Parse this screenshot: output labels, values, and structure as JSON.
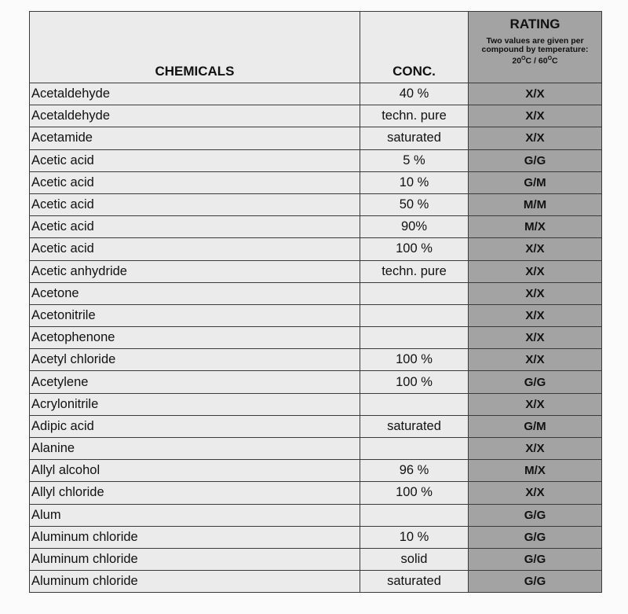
{
  "header": {
    "chemicals": "CHEMICALS",
    "conc": "CONC.",
    "rating": "RATING",
    "rating_note": "Two values are given per compound by temperature:",
    "temp1": "20",
    "temp2": "60",
    "deg_unit": "O",
    "unit_c1": "C / ",
    "unit_c2": "C"
  },
  "rows": [
    {
      "chemical": "Acetaldehyde",
      "conc": "40 %",
      "rating": "X/X"
    },
    {
      "chemical": "Acetaldehyde",
      "conc": "techn. pure",
      "rating": "X/X"
    },
    {
      "chemical": "Acetamide",
      "conc": "saturated",
      "rating": "X/X"
    },
    {
      "chemical": "Acetic acid",
      "conc": "5 %",
      "rating": "G/G"
    },
    {
      "chemical": "Acetic acid",
      "conc": "10 %",
      "rating": "G/M"
    },
    {
      "chemical": "Acetic acid",
      "conc": "50 %",
      "rating": "M/M"
    },
    {
      "chemical": "Acetic acid",
      "conc": "90%",
      "rating": "M/X"
    },
    {
      "chemical": "Acetic acid",
      "conc": "100 %",
      "rating": "X/X"
    },
    {
      "chemical": "Acetic anhydride",
      "conc": "techn. pure",
      "rating": "X/X"
    },
    {
      "chemical": "Acetone",
      "conc": "",
      "rating": "X/X"
    },
    {
      "chemical": "Acetonitrile",
      "conc": "",
      "rating": "X/X"
    },
    {
      "chemical": "Acetophenone",
      "conc": "",
      "rating": "X/X"
    },
    {
      "chemical": "Acetyl chloride",
      "conc": "100 %",
      "rating": "X/X"
    },
    {
      "chemical": "Acetylene",
      "conc": "100 %",
      "rating": "G/G"
    },
    {
      "chemical": "Acrylonitrile",
      "conc": "",
      "rating": "X/X"
    },
    {
      "chemical": "Adipic acid",
      "conc": "saturated",
      "rating": "G/M"
    },
    {
      "chemical": "Alanine",
      "conc": "",
      "rating": "X/X"
    },
    {
      "chemical": "Allyl alcohol",
      "conc": "96 %",
      "rating": "M/X"
    },
    {
      "chemical": "Allyl chloride",
      "conc": "100 %",
      "rating": "X/X"
    },
    {
      "chemical": "Alum",
      "conc": "",
      "rating": "G/G"
    },
    {
      "chemical": "Aluminum chloride",
      "conc": "10 %",
      "rating": "G/G"
    },
    {
      "chemical": "Aluminum chloride",
      "conc": "solid",
      "rating": "G/G"
    },
    {
      "chemical": "Aluminum chloride",
      "conc": "saturated",
      "rating": "G/G"
    }
  ]
}
